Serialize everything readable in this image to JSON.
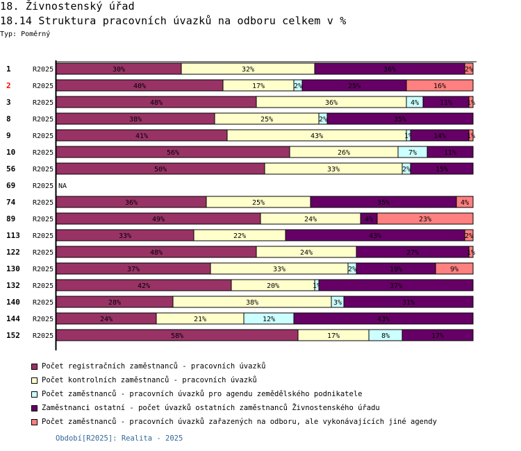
{
  "header": {
    "section_title": "18. Živnostenský úřad",
    "chart_title": "18.14 Struktura pracovních úvazků na odboru celkem v %",
    "type_label": "Typ: Poměrný"
  },
  "legend": [
    {
      "label": "Počet registračních zaměstnanců - pracovních úvazků",
      "color": "#993366"
    },
    {
      "label": "Počet kontrolních zaměstnanců - pracovních úvazků",
      "color": "#FFFFCC"
    },
    {
      "label": "Počet zaměstnanců - pracovních úvazků pro agendu zemědělského podnikatele",
      "color": "#CCFFFF"
    },
    {
      "label": "Zaměstnanci ostatní - počet úvazků ostatních zaměstnanců Živnostenského úřadu",
      "color": "#660066"
    },
    {
      "label": "Počet zaměstnanců - pracovních úvazků zařazených na odboru, ale vykonávajících jiné agendy",
      "color": "#FF8080"
    }
  ],
  "footer": {
    "period_note": "Období[R2025]: Realita - 2025"
  },
  "chart_data": {
    "type": "bar",
    "orientation": "horizontal",
    "stacked": true,
    "normalized_percent": true,
    "title": "18.14 Struktura pracovních úvazků na odboru celkem v %",
    "xlabel": "",
    "ylabel": "",
    "xlim": [
      0,
      100
    ],
    "grid": false,
    "legend_position": "bottom",
    "na_label": "NA",
    "value_suffix": "%",
    "categories": [
      {
        "id": "1",
        "period": "R2025",
        "highlight": false
      },
      {
        "id": "2",
        "period": "R2025",
        "highlight": true
      },
      {
        "id": "3",
        "period": "R2025",
        "highlight": false
      },
      {
        "id": "8",
        "period": "R2025",
        "highlight": false
      },
      {
        "id": "9",
        "period": "R2025",
        "highlight": false
      },
      {
        "id": "10",
        "period": "R2025",
        "highlight": false
      },
      {
        "id": "56",
        "period": "R2025",
        "highlight": false
      },
      {
        "id": "69",
        "period": "R2025",
        "highlight": false
      },
      {
        "id": "74",
        "period": "R2025",
        "highlight": false
      },
      {
        "id": "89",
        "period": "R2025",
        "highlight": false
      },
      {
        "id": "113",
        "period": "R2025",
        "highlight": false
      },
      {
        "id": "122",
        "period": "R2025",
        "highlight": false
      },
      {
        "id": "130",
        "period": "R2025",
        "highlight": false
      },
      {
        "id": "132",
        "period": "R2025",
        "highlight": false
      },
      {
        "id": "140",
        "period": "R2025",
        "highlight": false
      },
      {
        "id": "144",
        "period": "R2025",
        "highlight": false
      },
      {
        "id": "152",
        "period": "R2025",
        "highlight": false
      }
    ],
    "highlight_color": "#FF0000",
    "series": [
      {
        "name": "Počet registračních zaměstnanců - pracovních úvazků",
        "color": "#993366",
        "label_color": "#000000",
        "values": [
          30,
          40,
          48,
          38,
          41,
          56,
          50,
          null,
          36,
          49,
          33,
          48,
          37,
          42,
          28,
          24,
          58
        ]
      },
      {
        "name": "Počet kontrolních zaměstnanců - pracovních úvazků",
        "color": "#FFFFCC",
        "label_color": "#000000",
        "values": [
          32,
          17,
          36,
          25,
          43,
          26,
          33,
          null,
          25,
          24,
          22,
          24,
          33,
          20,
          38,
          21,
          17
        ]
      },
      {
        "name": "Počet zaměstnanců - pracovních úvazků pro agendu zemědělského podnikatele",
        "color": "#CCFFFF",
        "label_color": "#000000",
        "values": [
          0,
          2,
          4,
          2,
          1,
          7,
          2,
          null,
          0,
          0,
          0,
          0,
          2,
          1,
          3,
          12,
          8
        ]
      },
      {
        "name": "Zaměstnanci ostatní - počet úvazků ostatních zaměstnanců Živnostenského úřadu",
        "color": "#660066",
        "label_color": "#000000",
        "values": [
          36,
          25,
          11,
          35,
          14,
          11,
          15,
          null,
          35,
          4,
          43,
          27,
          19,
          37,
          31,
          43,
          17
        ]
      },
      {
        "name": "Počet zaměstnanců - pracovních úvazků zařazených na odboru, ale vykonávajících jiné agendy",
        "color": "#FF8080",
        "label_color": "#000000",
        "values": [
          2,
          16,
          1,
          0,
          1,
          0,
          0,
          null,
          4,
          23,
          2,
          1,
          9,
          0,
          0,
          0,
          0
        ]
      }
    ]
  }
}
